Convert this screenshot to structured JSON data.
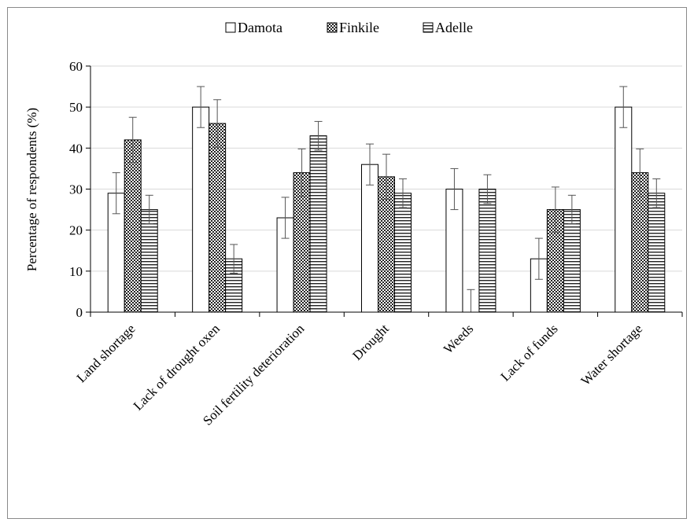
{
  "chart_data": {
    "type": "bar",
    "title": "",
    "xlabel": "",
    "ylabel": "Percentage  of respondents  (%)",
    "ylim": [
      0,
      60
    ],
    "yticks": [
      0,
      10,
      20,
      30,
      40,
      50,
      60
    ],
    "grid": "horizontal",
    "legend_position": "top-center",
    "categories": [
      "Land shortage",
      "Lack of drought oxen",
      "Soil fertility deterioration",
      "Drought",
      "Weeds",
      "Lack of funds",
      "Water shortage"
    ],
    "series": [
      {
        "name": "Damota",
        "pattern": "none",
        "values": [
          29,
          50,
          23,
          36,
          30,
          13,
          50
        ],
        "errors": [
          5,
          5,
          5,
          5,
          5,
          5,
          5
        ]
      },
      {
        "name": "Finkile",
        "pattern": "crosshatch",
        "values": [
          42,
          46,
          34,
          33,
          0,
          25,
          34
        ],
        "errors": [
          5.5,
          5.8,
          5.8,
          5.5,
          5.5,
          5.5,
          5.8
        ]
      },
      {
        "name": "Adelle",
        "pattern": "horizontal-lines",
        "values": [
          25,
          13,
          43,
          29,
          30,
          25,
          29
        ],
        "errors": [
          3.5,
          3.5,
          3.5,
          3.5,
          3.5,
          3.5,
          3.5
        ]
      }
    ],
    "colors": {
      "bar_stroke": "#000000",
      "grid": "#d9d9d9",
      "error_bar": "#555555",
      "frame": "#8a8a8a"
    }
  }
}
